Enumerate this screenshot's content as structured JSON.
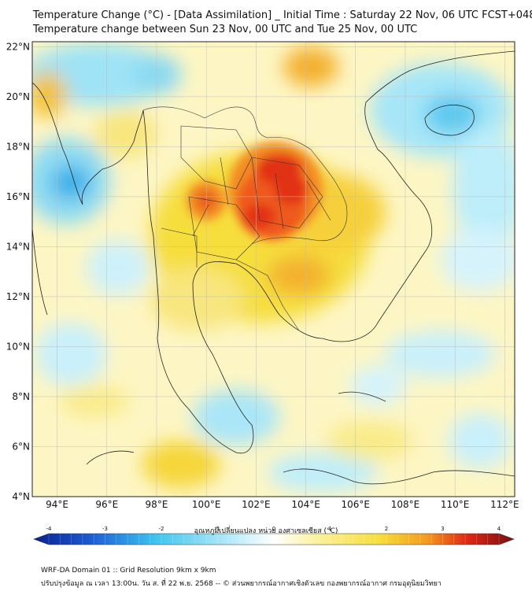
{
  "title": {
    "line1": "Temperature Change (°C) - [Data Assimilation] _ Initial Time : Saturday 22 Nov, 06 UTC FCST+048",
    "line2": "Temperature change between Sun 23 Nov, 00 UTC and Tue 25 Nov, 00 UTC"
  },
  "map": {
    "lat_labels": [
      "22°N",
      "20°N",
      "18°N",
      "16°N",
      "14°N",
      "12°N",
      "10°N",
      "8°N",
      "6°N",
      "4°N"
    ],
    "lat_values": [
      22,
      20,
      18,
      16,
      14,
      12,
      10,
      8,
      6,
      4
    ],
    "lon_labels": [
      "94°E",
      "96°E",
      "98°E",
      "100°E",
      "102°E",
      "104°E",
      "106°E",
      "108°E",
      "110°E",
      "112°E"
    ],
    "lon_values": [
      94,
      96,
      98,
      100,
      102,
      104,
      106,
      108,
      110,
      112
    ],
    "lat_range": [
      4,
      22.2
    ],
    "lon_range": [
      93,
      112.4
    ]
  },
  "colorbar": {
    "label": "อุณหภูมิเปลี่ยนแปลง หน่วย องศาเซลเซียส (°C)",
    "ticks": [
      "-4",
      "-3",
      "-2",
      "-1",
      "0",
      "1",
      "2",
      "3",
      "4"
    ],
    "tick_values": [
      -4,
      -3,
      -2,
      -1,
      0,
      1,
      2,
      3,
      4
    ],
    "range": [
      -4,
      4
    ],
    "colors": {
      "deep_blue": "#0a1f8f",
      "blue": "#1e5fd6",
      "cyan": "#3cc3ef",
      "light_cyan": "#bdeefa",
      "white": "#ffffff",
      "light_yellow": "#fbf3a6",
      "yellow": "#f6de3c",
      "orange": "#f39a1e",
      "red": "#e02a14",
      "dark_red": "#7a0d10"
    }
  },
  "footer": {
    "line1": "WRF-DA Domain 01 :: Grid Resolution 9km x 9km",
    "line2": "ปรับปรุงข้อมูล ณ เวลา 13:00น. วัน ส. ที่ 22 พ.ย. 2568 -- © ส่วนพยากรณ์อากาศเชิงตัวเลข กองพยากรณ์อากาศ กรมอุตุนิยมวิทยา"
  }
}
